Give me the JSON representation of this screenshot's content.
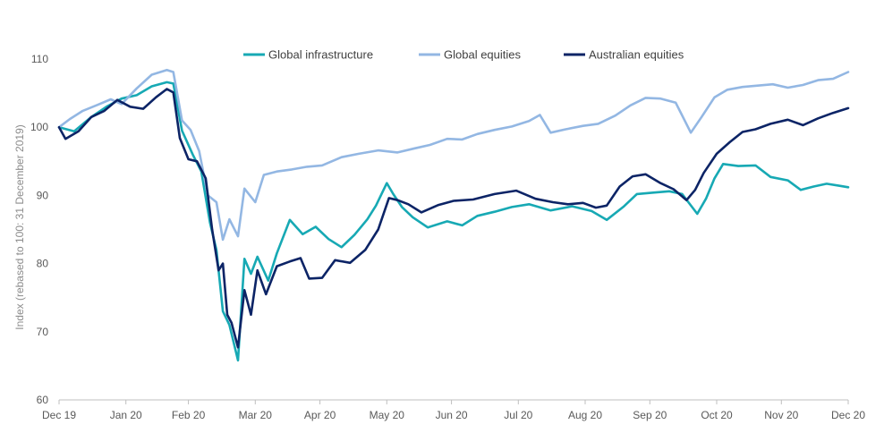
{
  "chart_data": {
    "type": "line",
    "title": "",
    "xlabel": "",
    "ylabel": "Index (rebased to 100: 31 December 2019)",
    "ylim": [
      60,
      110
    ],
    "yticks": [
      60,
      70,
      80,
      90,
      100,
      110
    ],
    "xlim": [
      "2019-12-31",
      "2020-12-31"
    ],
    "x_tick_labels": [
      "Dec 19",
      "Jan 20",
      "Feb 20",
      "Mar 20",
      "Apr 20",
      "May 20",
      "Jun 20",
      "Jul 20",
      "Aug 20",
      "Sep 20",
      "Oct 20",
      "Nov 20",
      "Dec 20"
    ],
    "x_tick_dates": [
      "2019-12-31",
      "2020-01-31",
      "2020-02-29",
      "2020-03-31",
      "2020-04-30",
      "2020-05-31",
      "2020-06-30",
      "2020-07-31",
      "2020-08-31",
      "2020-09-30",
      "2020-10-31",
      "2020-11-30",
      "2020-12-31"
    ],
    "grid": false,
    "legend_position": "top-center",
    "series": [
      {
        "name": "Global infrastructure",
        "color": "#17a9b4",
        "points": [
          [
            "2019-12-31",
            100
          ],
          [
            "2020-01-07",
            99.4
          ],
          [
            "2020-01-15",
            101.5
          ],
          [
            "2020-01-22",
            103
          ],
          [
            "2020-01-29",
            104.2
          ],
          [
            "2020-02-05",
            104.7
          ],
          [
            "2020-02-12",
            106
          ],
          [
            "2020-02-19",
            106.6
          ],
          [
            "2020-02-22",
            106.4
          ],
          [
            "2020-02-26",
            99.5
          ],
          [
            "2020-03-02",
            96
          ],
          [
            "2020-03-06",
            93.5
          ],
          [
            "2020-03-10",
            86
          ],
          [
            "2020-03-13",
            82
          ],
          [
            "2020-03-16",
            73
          ],
          [
            "2020-03-19",
            71
          ],
          [
            "2020-03-23",
            65.8
          ],
          [
            "2020-03-26",
            80.7
          ],
          [
            "2020-03-29",
            78.5
          ],
          [
            "2020-04-01",
            81
          ],
          [
            "2020-04-06",
            77.5
          ],
          [
            "2020-04-10",
            81.5
          ],
          [
            "2020-04-16",
            86.4
          ],
          [
            "2020-04-22",
            84.3
          ],
          [
            "2020-04-28",
            85.4
          ],
          [
            "2020-05-04",
            83.6
          ],
          [
            "2020-05-10",
            82.4
          ],
          [
            "2020-05-16",
            84.2
          ],
          [
            "2020-05-22",
            86.5
          ],
          [
            "2020-05-26",
            88.5
          ],
          [
            "2020-05-31",
            91.8
          ],
          [
            "2020-06-03",
            90.2
          ],
          [
            "2020-06-07",
            88.3
          ],
          [
            "2020-06-12",
            86.8
          ],
          [
            "2020-06-19",
            85.3
          ],
          [
            "2020-06-28",
            86.2
          ],
          [
            "2020-07-05",
            85.6
          ],
          [
            "2020-07-12",
            87
          ],
          [
            "2020-07-20",
            87.6
          ],
          [
            "2020-07-28",
            88.3
          ],
          [
            "2020-08-05",
            88.7
          ],
          [
            "2020-08-15",
            87.8
          ],
          [
            "2020-08-25",
            88.4
          ],
          [
            "2020-09-03",
            87.7
          ],
          [
            "2020-09-10",
            86.4
          ],
          [
            "2020-09-18",
            88.4
          ],
          [
            "2020-09-24",
            90.2
          ],
          [
            "2020-10-01",
            90.4
          ],
          [
            "2020-10-09",
            90.6
          ],
          [
            "2020-10-15",
            90.2
          ],
          [
            "2020-10-22",
            87.3
          ],
          [
            "2020-10-26",
            89.5
          ],
          [
            "2020-10-30",
            92.5
          ],
          [
            "2020-11-03",
            94.6
          ],
          [
            "2020-11-10",
            94.3
          ],
          [
            "2020-11-18",
            94.4
          ],
          [
            "2020-11-25",
            92.7
          ],
          [
            "2020-12-03",
            92.2
          ],
          [
            "2020-12-09",
            90.8
          ],
          [
            "2020-12-15",
            91.3
          ],
          [
            "2020-12-21",
            91.7
          ],
          [
            "2020-12-27",
            91.4
          ],
          [
            "2020-12-31",
            91.2
          ]
        ]
      },
      {
        "name": "Global equities",
        "color": "#93b7e3",
        "points": [
          [
            "2019-12-31",
            100
          ],
          [
            "2020-01-05",
            101.2
          ],
          [
            "2020-01-11",
            102.4
          ],
          [
            "2020-01-18",
            103.3
          ],
          [
            "2020-01-24",
            104.1
          ],
          [
            "2020-01-29",
            103.4
          ],
          [
            "2020-02-05",
            105.7
          ],
          [
            "2020-02-12",
            107.7
          ],
          [
            "2020-02-19",
            108.4
          ],
          [
            "2020-02-22",
            108.1
          ],
          [
            "2020-02-26",
            101
          ],
          [
            "2020-03-01",
            99.6
          ],
          [
            "2020-03-05",
            96.5
          ],
          [
            "2020-03-09",
            90
          ],
          [
            "2020-03-13",
            89
          ],
          [
            "2020-03-16",
            83.5
          ],
          [
            "2020-03-19",
            86.5
          ],
          [
            "2020-03-23",
            84
          ],
          [
            "2020-03-26",
            91
          ],
          [
            "2020-03-31",
            89
          ],
          [
            "2020-04-04",
            93
          ],
          [
            "2020-04-10",
            93.5
          ],
          [
            "2020-04-17",
            93.8
          ],
          [
            "2020-04-24",
            94.2
          ],
          [
            "2020-05-01",
            94.4
          ],
          [
            "2020-05-10",
            95.6
          ],
          [
            "2020-05-18",
            96.1
          ],
          [
            "2020-05-27",
            96.6
          ],
          [
            "2020-06-05",
            96.3
          ],
          [
            "2020-06-13",
            96.9
          ],
          [
            "2020-06-20",
            97.4
          ],
          [
            "2020-06-28",
            98.3
          ],
          [
            "2020-07-05",
            98.2
          ],
          [
            "2020-07-12",
            99
          ],
          [
            "2020-07-20",
            99.6
          ],
          [
            "2020-07-28",
            100.1
          ],
          [
            "2020-08-05",
            100.9
          ],
          [
            "2020-08-10",
            101.8
          ],
          [
            "2020-08-15",
            99.2
          ],
          [
            "2020-08-22",
            99.7
          ],
          [
            "2020-08-30",
            100.2
          ],
          [
            "2020-09-06",
            100.5
          ],
          [
            "2020-09-14",
            101.7
          ],
          [
            "2020-09-21",
            103.2
          ],
          [
            "2020-09-28",
            104.3
          ],
          [
            "2020-10-05",
            104.2
          ],
          [
            "2020-10-12",
            103.6
          ],
          [
            "2020-10-19",
            99.2
          ],
          [
            "2020-10-24",
            101.5
          ],
          [
            "2020-10-30",
            104.4
          ],
          [
            "2020-11-05",
            105.5
          ],
          [
            "2020-11-12",
            105.9
          ],
          [
            "2020-11-19",
            106.1
          ],
          [
            "2020-11-26",
            106.3
          ],
          [
            "2020-12-03",
            105.8
          ],
          [
            "2020-12-10",
            106.2
          ],
          [
            "2020-12-17",
            106.9
          ],
          [
            "2020-12-24",
            107.1
          ],
          [
            "2020-12-31",
            108.1
          ]
        ]
      },
      {
        "name": "Australian equities",
        "color": "#0c2466",
        "points": [
          [
            "2019-12-31",
            100
          ],
          [
            "2020-01-03",
            98.3
          ],
          [
            "2020-01-09",
            99.4
          ],
          [
            "2020-01-15",
            101.5
          ],
          [
            "2020-01-21",
            102.4
          ],
          [
            "2020-01-27",
            104
          ],
          [
            "2020-02-02",
            103
          ],
          [
            "2020-02-08",
            102.7
          ],
          [
            "2020-02-14",
            104.4
          ],
          [
            "2020-02-19",
            105.6
          ],
          [
            "2020-02-22",
            105.1
          ],
          [
            "2020-02-25",
            98.4
          ],
          [
            "2020-02-29",
            95.3
          ],
          [
            "2020-03-04",
            95
          ],
          [
            "2020-03-08",
            92.5
          ],
          [
            "2020-03-11",
            85
          ],
          [
            "2020-03-14",
            79
          ],
          [
            "2020-03-16",
            80
          ],
          [
            "2020-03-18",
            72.5
          ],
          [
            "2020-03-20",
            71.3
          ],
          [
            "2020-03-23",
            67.7
          ],
          [
            "2020-03-26",
            76.1
          ],
          [
            "2020-03-29",
            72.5
          ],
          [
            "2020-04-01",
            79
          ],
          [
            "2020-04-05",
            75.5
          ],
          [
            "2020-04-10",
            79.6
          ],
          [
            "2020-04-16",
            80.3
          ],
          [
            "2020-04-21",
            80.8
          ],
          [
            "2020-04-25",
            77.8
          ],
          [
            "2020-05-01",
            77.9
          ],
          [
            "2020-05-07",
            80.5
          ],
          [
            "2020-05-14",
            80.1
          ],
          [
            "2020-05-21",
            82
          ],
          [
            "2020-05-27",
            85
          ],
          [
            "2020-06-01",
            89.6
          ],
          [
            "2020-06-05",
            89.3
          ],
          [
            "2020-06-10",
            88.7
          ],
          [
            "2020-06-16",
            87.5
          ],
          [
            "2020-06-24",
            88.6
          ],
          [
            "2020-07-01",
            89.2
          ],
          [
            "2020-07-10",
            89.4
          ],
          [
            "2020-07-20",
            90.2
          ],
          [
            "2020-07-30",
            90.7
          ],
          [
            "2020-08-08",
            89.5
          ],
          [
            "2020-08-16",
            89
          ],
          [
            "2020-08-23",
            88.7
          ],
          [
            "2020-08-30",
            88.9
          ],
          [
            "2020-09-05",
            88.2
          ],
          [
            "2020-09-10",
            88.5
          ],
          [
            "2020-09-16",
            91.3
          ],
          [
            "2020-09-22",
            92.8
          ],
          [
            "2020-09-28",
            93.1
          ],
          [
            "2020-10-05",
            91.8
          ],
          [
            "2020-10-11",
            90.9
          ],
          [
            "2020-10-17",
            89.3
          ],
          [
            "2020-10-21",
            90.8
          ],
          [
            "2020-10-25",
            93.3
          ],
          [
            "2020-10-31",
            96.1
          ],
          [
            "2020-11-06",
            97.8
          ],
          [
            "2020-11-12",
            99.3
          ],
          [
            "2020-11-18",
            99.7
          ],
          [
            "2020-11-25",
            100.5
          ],
          [
            "2020-12-03",
            101.1
          ],
          [
            "2020-12-10",
            100.3
          ],
          [
            "2020-12-17",
            101.3
          ],
          [
            "2020-12-24",
            102.1
          ],
          [
            "2020-12-31",
            102.8
          ]
        ]
      }
    ]
  }
}
